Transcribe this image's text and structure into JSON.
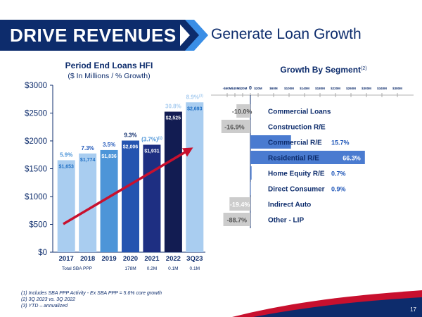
{
  "header": {
    "banner": "DRIVE REVENUES",
    "subtitle": "Generate Loan Growth"
  },
  "left_chart_title": "Period End Loans HFI",
  "left_chart_subtitle": "($ In Millions / % Growth)",
  "right_chart_title": "Growth By Segment",
  "right_chart_title_sup": "(2)",
  "sba_ppp": {
    "label": "Total SBA PPP",
    "values": [
      "",
      "",
      "178M",
      "0.2M",
      "0.1M",
      "0.1M"
    ]
  },
  "footnotes": [
    "(1) Includes SBA PPP Activity - Ex SBA PPP = 5.6% core growth",
    "(2) 3Q 2023 vs. 3Q 2022",
    "(3) YTD – annualized"
  ],
  "page_number": "17",
  "colors": {
    "navy": "#0d2c6c",
    "accent_red": "#c8102e",
    "light_blue": "#a9cdf0",
    "medium_blue": "#5b9bd5",
    "bright_blue": "#1f6fc4",
    "segment_positive": "#4a7bd0",
    "segment_negative": "#cccccc"
  },
  "chart_data": [
    {
      "type": "bar",
      "categories": [
        "2017",
        "2018",
        "2019",
        "2020",
        "2021",
        "2022",
        "3Q23"
      ],
      "values": [
        1653,
        1774,
        1836,
        2006,
        1931,
        2525,
        2693
      ],
      "value_labels": [
        "$1,653",
        "$1,774",
        "$1,836",
        "$2,006",
        "$1,931",
        "$2,525",
        "$2,693"
      ],
      "growth_labels": [
        "5.9%",
        "7.3%",
        "3.5%",
        "9.3%",
        "(3.7%)",
        "30.8%",
        "8.9%"
      ],
      "growth_sup": [
        "",
        "",
        "",
        "",
        "(1)",
        "",
        "(3)"
      ],
      "bar_colors": [
        "#a9cdf0",
        "#a9cdf0",
        "#4d95d8",
        "#2454b0",
        "#1e2f82",
        "#121c52",
        "#a9cdf0"
      ],
      "growth_colors": [
        "#4d95d8",
        "#1f56b8",
        "#1f56b8",
        "#0d2c6c",
        "#4d95d8",
        "#a9cdf0",
        "#a9cdf0"
      ],
      "yticks": [
        0,
        500,
        1000,
        1500,
        2000,
        2500,
        3000
      ],
      "ytick_labels": [
        "$0",
        "$500",
        "$1000",
        "$1500",
        "$2000",
        "$2500",
        "$3000"
      ],
      "ylim": [
        0,
        3000
      ]
    },
    {
      "type": "bar",
      "orientation": "horizontal",
      "categories": [
        "Commercial Loans",
        "Construction R/E",
        "Commercial R/E",
        "Residential R/E",
        "Home Equity R/E",
        "Direct Consumer",
        "Indirect Auto",
        "Other - LIP"
      ],
      "values_pct": [
        -10.0,
        -16.9,
        15.7,
        66.3,
        0.7,
        0.9,
        -19.4,
        -88.7
      ],
      "pct_labels": [
        "-10.0%",
        "-16.9%",
        "15.7%",
        "66.3%",
        "0.7%",
        "0.9%",
        "-19.4%",
        "-88.7%"
      ],
      "values_musd": [
        -36,
        -75,
        105,
        296,
        3,
        1,
        -54,
        -70
      ],
      "xticks": [
        -60,
        -40,
        -20,
        0,
        20,
        60,
        100,
        140,
        180,
        220,
        260,
        300,
        340,
        380
      ],
      "xtick_labels": [
        "-$60M",
        "-$40M",
        "-$20M",
        "0",
        "$20M",
        "$60M",
        "$100M",
        "$140M",
        "$180M",
        "$220M",
        "$260M",
        "$300M",
        "$340M",
        "$380M"
      ],
      "xlim": [
        -80,
        390
      ]
    }
  ]
}
